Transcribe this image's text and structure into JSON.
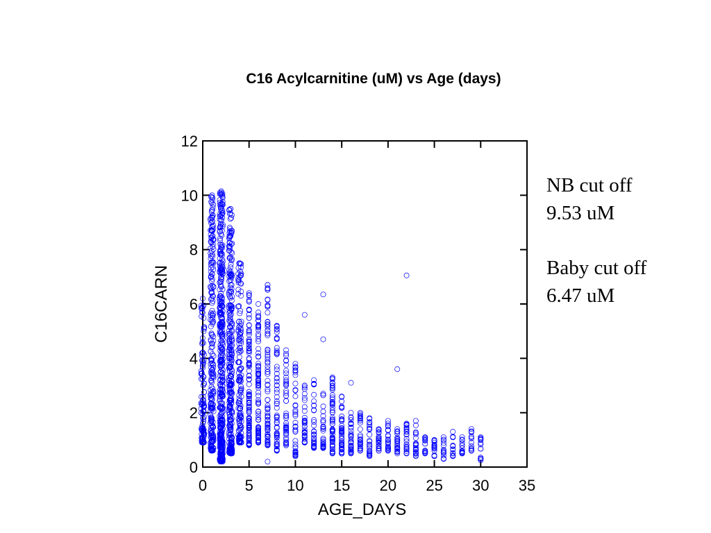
{
  "chart_data": {
    "type": "scatter",
    "title": "C16 Acylcarnitine (uM) vs Age (days)",
    "xlabel": "AGE_DAYS",
    "ylabel": "C16CARN",
    "xlim": [
      0,
      35
    ],
    "ylim": [
      0,
      12
    ],
    "xticks": [
      0,
      5,
      10,
      15,
      20,
      25,
      30,
      35
    ],
    "yticks": [
      0,
      2,
      4,
      6,
      8,
      10,
      12
    ],
    "grid": false,
    "marker": "open-circle",
    "marker_color": "#0000ff",
    "distribution": [
      {
        "x": 0,
        "n": 110,
        "min": 0.9,
        "max": 6.2
      },
      {
        "x": 1,
        "n": 240,
        "min": 0.6,
        "max": 10.0
      },
      {
        "x": 2,
        "n": 420,
        "min": 0.2,
        "max": 10.1
      },
      {
        "x": 3,
        "n": 300,
        "min": 0.5,
        "max": 9.5
      },
      {
        "x": 4,
        "n": 150,
        "min": 0.9,
        "max": 7.5
      },
      {
        "x": 5,
        "n": 110,
        "min": 0.8,
        "max": 6.4
      },
      {
        "x": 6,
        "n": 85,
        "min": 0.9,
        "max": 6.0
      },
      {
        "x": 7,
        "n": 75,
        "min": 0.8,
        "max": 6.7
      },
      {
        "x": 8,
        "n": 60,
        "min": 0.6,
        "max": 5.2
      },
      {
        "x": 9,
        "n": 45,
        "min": 0.8,
        "max": 4.3
      },
      {
        "x": 10,
        "n": 38,
        "min": 0.4,
        "max": 3.8
      },
      {
        "x": 11,
        "n": 34,
        "min": 0.9,
        "max": 3.0
      },
      {
        "x": 12,
        "n": 32,
        "min": 0.7,
        "max": 3.2
      },
      {
        "x": 13,
        "n": 32,
        "min": 0.7,
        "max": 2.7
      },
      {
        "x": 14,
        "n": 60,
        "min": 0.5,
        "max": 3.3
      },
      {
        "x": 15,
        "n": 45,
        "min": 0.5,
        "max": 2.6
      },
      {
        "x": 16,
        "n": 32,
        "min": 0.5,
        "max": 2.0
      },
      {
        "x": 17,
        "n": 28,
        "min": 0.6,
        "max": 2.0
      },
      {
        "x": 18,
        "n": 26,
        "min": 0.4,
        "max": 1.8
      },
      {
        "x": 19,
        "n": 24,
        "min": 0.6,
        "max": 1.4
      },
      {
        "x": 20,
        "n": 22,
        "min": 0.6,
        "max": 1.7
      },
      {
        "x": 21,
        "n": 20,
        "min": 0.5,
        "max": 1.4
      },
      {
        "x": 22,
        "n": 22,
        "min": 0.5,
        "max": 1.6
      },
      {
        "x": 23,
        "n": 20,
        "min": 0.4,
        "max": 1.7
      },
      {
        "x": 24,
        "n": 16,
        "min": 0.5,
        "max": 1.1
      },
      {
        "x": 25,
        "n": 16,
        "min": 0.4,
        "max": 1.0
      },
      {
        "x": 26,
        "n": 15,
        "min": 0.3,
        "max": 1.1
      },
      {
        "x": 27,
        "n": 13,
        "min": 0.4,
        "max": 1.3
      },
      {
        "x": 28,
        "n": 13,
        "min": 0.5,
        "max": 1.1
      },
      {
        "x": 29,
        "n": 12,
        "min": 0.6,
        "max": 1.4
      },
      {
        "x": 30,
        "n": 12,
        "min": 0.3,
        "max": 1.1
      }
    ],
    "outliers": [
      {
        "x": 2,
        "y": 10.15
      },
      {
        "x": 2,
        "y": 0.3
      },
      {
        "x": 3,
        "y": 9.5
      },
      {
        "x": 7,
        "y": 6.7
      },
      {
        "x": 7,
        "y": 0.2
      },
      {
        "x": 11,
        "y": 5.6
      },
      {
        "x": 13,
        "y": 6.35
      },
      {
        "x": 13,
        "y": 4.7
      },
      {
        "x": 16,
        "y": 3.1
      },
      {
        "x": 21,
        "y": 3.6
      },
      {
        "x": 22,
        "y": 7.05
      },
      {
        "x": 30,
        "y": 0.25
      }
    ]
  },
  "annotations": [
    {
      "line1": "NB cut off",
      "line2": "9.53 uM"
    },
    {
      "line1": "Baby cut off",
      "line2": "6.47 uM"
    }
  ]
}
